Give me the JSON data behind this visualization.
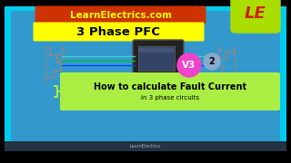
{
  "bg_outer": "#000000",
  "bg_cyan": "#00CCEE",
  "bg_main": "#3399CC",
  "title_box_color": "#FFFF00",
  "title_text": "3 Phase PFC",
  "title_text_color": "#000000",
  "site_box_color": "#CC3300",
  "site_text": "LearnElectrics.com",
  "site_text_color": "#FFFF00",
  "bottom_box_color": "#AAEE44",
  "bottom_title": "How to calculate Fault Current",
  "bottom_subtitle": "in 3 phase circuits",
  "bottom_text_color": "#000000",
  "le_box_color": "#AADD00",
  "le_letter_color": "#CC2200",
  "le_text": "LE",
  "v3_circle_color": "#EE44CC",
  "v3_text": "V3",
  "v3_text_color": "#FFFFFF",
  "two_circle_color": "#88AACC",
  "two_text": "2",
  "two_text_color": "#000000",
  "footer_text": "LearnElectrics",
  "footer_color": "#AAAAAA",
  "wire_colors": [
    "#0044FF",
    "#00BB44",
    "#44CCCC"
  ],
  "coil_color": "#888888",
  "meter_color": "#222222",
  "meter_screen_color": "#334466"
}
